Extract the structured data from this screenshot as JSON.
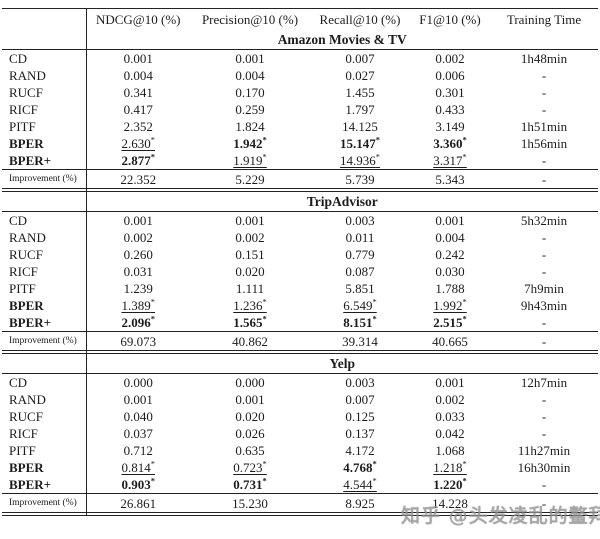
{
  "table": {
    "corner_label": "",
    "columns": [
      "NDCG@10 (%)",
      "Precision@10 (%)",
      "Recall@10 (%)",
      "F1@10 (%)",
      "Training Time"
    ],
    "improvement_label": "Improvement (%)",
    "sections": [
      {
        "title": "Amazon Movies & TV",
        "rows": [
          {
            "label": "CD",
            "bold": false,
            "cells": [
              {
                "t": "0.001"
              },
              {
                "t": "0.001"
              },
              {
                "t": "0.007"
              },
              {
                "t": "0.002"
              },
              {
                "t": "1h48min"
              }
            ]
          },
          {
            "label": "RAND",
            "bold": false,
            "cells": [
              {
                "t": "0.004"
              },
              {
                "t": "0.004"
              },
              {
                "t": "0.027"
              },
              {
                "t": "0.006"
              },
              {
                "t": "-"
              }
            ]
          },
          {
            "label": "RUCF",
            "bold": false,
            "cells": [
              {
                "t": "0.341"
              },
              {
                "t": "0.170"
              },
              {
                "t": "1.455"
              },
              {
                "t": "0.301"
              },
              {
                "t": "-"
              }
            ]
          },
          {
            "label": "RICF",
            "bold": false,
            "cells": [
              {
                "t": "0.417"
              },
              {
                "t": "0.259"
              },
              {
                "t": "1.797"
              },
              {
                "t": "0.433"
              },
              {
                "t": "-"
              }
            ]
          },
          {
            "label": "PITF",
            "bold": false,
            "cells": [
              {
                "t": "2.352"
              },
              {
                "t": "1.824"
              },
              {
                "t": "14.125"
              },
              {
                "t": "3.149"
              },
              {
                "t": "1h51min"
              }
            ]
          },
          {
            "label": "BPER",
            "bold": true,
            "cells": [
              {
                "t": "2.630",
                "star": true,
                "under": true
              },
              {
                "t": "1.942",
                "star": true,
                "bold": true
              },
              {
                "t": "15.147",
                "star": true,
                "bold": true
              },
              {
                "t": "3.360",
                "star": true,
                "bold": true
              },
              {
                "t": "1h56min"
              }
            ]
          },
          {
            "label": "BPER+",
            "bold": true,
            "cells": [
              {
                "t": "2.877",
                "star": true,
                "bold": true
              },
              {
                "t": "1.919",
                "star": true,
                "under": true
              },
              {
                "t": "14.936",
                "star": true,
                "under": true
              },
              {
                "t": "3.317",
                "star": true,
                "under": true
              },
              {
                "t": "-"
              }
            ]
          }
        ],
        "improvement": [
          "22.352",
          "5.229",
          "5.739",
          "5.343",
          "-"
        ]
      },
      {
        "title": "TripAdvisor",
        "rows": [
          {
            "label": "CD",
            "bold": false,
            "cells": [
              {
                "t": "0.001"
              },
              {
                "t": "0.001"
              },
              {
                "t": "0.003"
              },
              {
                "t": "0.001"
              },
              {
                "t": "5h32min"
              }
            ]
          },
          {
            "label": "RAND",
            "bold": false,
            "cells": [
              {
                "t": "0.002"
              },
              {
                "t": "0.002"
              },
              {
                "t": "0.011"
              },
              {
                "t": "0.004"
              },
              {
                "t": "-"
              }
            ]
          },
          {
            "label": "RUCF",
            "bold": false,
            "cells": [
              {
                "t": "0.260"
              },
              {
                "t": "0.151"
              },
              {
                "t": "0.779"
              },
              {
                "t": "0.242"
              },
              {
                "t": "-"
              }
            ]
          },
          {
            "label": "RICF",
            "bold": false,
            "cells": [
              {
                "t": "0.031"
              },
              {
                "t": "0.020"
              },
              {
                "t": "0.087"
              },
              {
                "t": "0.030"
              },
              {
                "t": "-"
              }
            ]
          },
          {
            "label": "PITF",
            "bold": false,
            "cells": [
              {
                "t": "1.239"
              },
              {
                "t": "1.111"
              },
              {
                "t": "5.851"
              },
              {
                "t": "1.788"
              },
              {
                "t": "7h9min"
              }
            ]
          },
          {
            "label": "BPER",
            "bold": true,
            "cells": [
              {
                "t": "1.389",
                "star": true,
                "under": true
              },
              {
                "t": "1.236",
                "star": true,
                "under": true
              },
              {
                "t": "6.549",
                "star": true,
                "under": true
              },
              {
                "t": "1.992",
                "star": true,
                "under": true
              },
              {
                "t": "9h43min"
              }
            ]
          },
          {
            "label": "BPER+",
            "bold": true,
            "cells": [
              {
                "t": "2.096",
                "star": true,
                "bold": true
              },
              {
                "t": "1.565",
                "star": true,
                "bold": true
              },
              {
                "t": "8.151",
                "star": true,
                "bold": true
              },
              {
                "t": "2.515",
                "star": true,
                "bold": true
              },
              {
                "t": "-"
              }
            ]
          }
        ],
        "improvement": [
          "69.073",
          "40.862",
          "39.314",
          "40.665",
          "-"
        ]
      },
      {
        "title": "Yelp",
        "rows": [
          {
            "label": "CD",
            "bold": false,
            "cells": [
              {
                "t": "0.000"
              },
              {
                "t": "0.000"
              },
              {
                "t": "0.003"
              },
              {
                "t": "0.001"
              },
              {
                "t": "12h7min"
              }
            ]
          },
          {
            "label": "RAND",
            "bold": false,
            "cells": [
              {
                "t": "0.001"
              },
              {
                "t": "0.001"
              },
              {
                "t": "0.007"
              },
              {
                "t": "0.002"
              },
              {
                "t": "-"
              }
            ]
          },
          {
            "label": "RUCF",
            "bold": false,
            "cells": [
              {
                "t": "0.040"
              },
              {
                "t": "0.020"
              },
              {
                "t": "0.125"
              },
              {
                "t": "0.033"
              },
              {
                "t": "-"
              }
            ]
          },
          {
            "label": "RICF",
            "bold": false,
            "cells": [
              {
                "t": "0.037"
              },
              {
                "t": "0.026"
              },
              {
                "t": "0.137"
              },
              {
                "t": "0.042"
              },
              {
                "t": "-"
              }
            ]
          },
          {
            "label": "PITF",
            "bold": false,
            "cells": [
              {
                "t": "0.712"
              },
              {
                "t": "0.635"
              },
              {
                "t": "4.172"
              },
              {
                "t": "1.068"
              },
              {
                "t": "11h27min"
              }
            ]
          },
          {
            "label": "BPER",
            "bold": true,
            "cells": [
              {
                "t": "0.814",
                "star": true,
                "under": true
              },
              {
                "t": "0.723",
                "star": true,
                "under": true
              },
              {
                "t": "4.768",
                "star": true,
                "bold": true
              },
              {
                "t": "1.218",
                "star": true,
                "under": true
              },
              {
                "t": "16h30min"
              }
            ]
          },
          {
            "label": "BPER+",
            "bold": true,
            "cells": [
              {
                "t": "0.903",
                "star": true,
                "bold": true
              },
              {
                "t": "0.731",
                "star": true,
                "bold": true
              },
              {
                "t": "4.544",
                "star": true,
                "under": true
              },
              {
                "t": "1.220",
                "star": true,
                "bold": true
              },
              {
                "t": "-"
              }
            ]
          }
        ],
        "improvement": [
          "26.861",
          "15.230",
          "8.925",
          "14.228",
          "-"
        ]
      }
    ]
  },
  "watermark": {
    "text": "知乎 @头发凌乱的鳌拜"
  }
}
